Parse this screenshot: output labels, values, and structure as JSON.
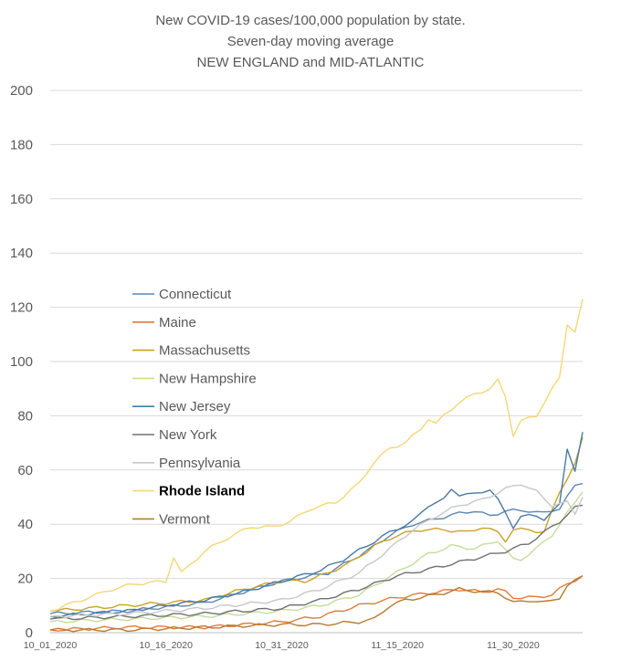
{
  "chart_data": {
    "type": "line",
    "title_lines": [
      "New COVID-19 cases/100,000 population by state.",
      "Seven-day moving average",
      "NEW ENGLAND and MID-ATLANTIC"
    ],
    "xlabel": "",
    "ylabel": "",
    "ylim": [
      0,
      200
    ],
    "yticks": [
      0,
      20,
      40,
      60,
      80,
      100,
      120,
      140,
      160,
      180,
      200
    ],
    "x_start": "10_01_2020",
    "num_points": 70,
    "xtick_labels": [
      {
        "label": "10_01_2020",
        "index": 0
      },
      {
        "label": "10_16_2020",
        "index": 15
      },
      {
        "label": "10_31_2020",
        "index": 30
      },
      {
        "label": "11_15_2020",
        "index": 45
      },
      {
        "label": "11_30_2020",
        "index": 60
      }
    ],
    "grid": true,
    "legend_position": "center-left",
    "highlighted_series": "Rhode Island",
    "series": [
      {
        "name": "Connecticut",
        "color": "#5b87b0",
        "keys": [
          [
            0,
            7
          ],
          [
            10,
            8
          ],
          [
            20,
            11
          ],
          [
            30,
            19
          ],
          [
            36,
            22
          ],
          [
            41,
            30
          ],
          [
            44,
            36
          ],
          [
            47,
            40
          ],
          [
            50,
            42
          ],
          [
            53,
            44
          ],
          [
            55,
            45
          ],
          [
            57,
            43
          ],
          [
            59,
            45
          ],
          [
            62,
            45
          ],
          [
            64,
            44
          ],
          [
            66,
            46
          ],
          [
            68,
            54
          ],
          [
            69,
            55
          ]
        ]
      },
      {
        "name": "Maine",
        "color": "#e07b39",
        "keys": [
          [
            0,
            1
          ],
          [
            10,
            2
          ],
          [
            20,
            2
          ],
          [
            30,
            4
          ],
          [
            35,
            6
          ],
          [
            40,
            10
          ],
          [
            45,
            13
          ],
          [
            50,
            15
          ],
          [
            53,
            16
          ],
          [
            56,
            15
          ],
          [
            58,
            16
          ],
          [
            59,
            15
          ],
          [
            60,
            13
          ],
          [
            63,
            13
          ],
          [
            65,
            14
          ],
          [
            67,
            18
          ],
          [
            69,
            21
          ]
        ]
      },
      {
        "name": "Massachusetts",
        "color": "#c9a227",
        "keys": [
          [
            0,
            8
          ],
          [
            10,
            10
          ],
          [
            20,
            12
          ],
          [
            25,
            16
          ],
          [
            30,
            19
          ],
          [
            33,
            19
          ],
          [
            36,
            22
          ],
          [
            39,
            26
          ],
          [
            42,
            32
          ],
          [
            45,
            36
          ],
          [
            48,
            38
          ],
          [
            51,
            38
          ],
          [
            54,
            37
          ],
          [
            56,
            39
          ],
          [
            58,
            37
          ],
          [
            59,
            34
          ],
          [
            60,
            38
          ],
          [
            62,
            38
          ],
          [
            64,
            37
          ],
          [
            66,
            52
          ],
          [
            68,
            62
          ],
          [
            69,
            72
          ]
        ]
      },
      {
        "name": "New Hampshire",
        "color": "#c5dd9a",
        "keys": [
          [
            0,
            4
          ],
          [
            10,
            5
          ],
          [
            20,
            6
          ],
          [
            30,
            8
          ],
          [
            35,
            10
          ],
          [
            40,
            14
          ],
          [
            43,
            19
          ],
          [
            46,
            24
          ],
          [
            49,
            29
          ],
          [
            52,
            32
          ],
          [
            55,
            31
          ],
          [
            58,
            34
          ],
          [
            60,
            27
          ],
          [
            61,
            27
          ],
          [
            63,
            31
          ],
          [
            65,
            36
          ],
          [
            67,
            44
          ],
          [
            69,
            52
          ]
        ]
      },
      {
        "name": "New Jersey",
        "color": "#4a78a6",
        "keys": [
          [
            0,
            6
          ],
          [
            10,
            8
          ],
          [
            20,
            12
          ],
          [
            25,
            15
          ],
          [
            30,
            19
          ],
          [
            35,
            23
          ],
          [
            38,
            27
          ],
          [
            41,
            32
          ],
          [
            44,
            37
          ],
          [
            47,
            41
          ],
          [
            49,
            47
          ],
          [
            51,
            49
          ],
          [
            52,
            53
          ],
          [
            53,
            51
          ],
          [
            55,
            51
          ],
          [
            57,
            53
          ],
          [
            58,
            49
          ],
          [
            60,
            39
          ],
          [
            61,
            43
          ],
          [
            63,
            43
          ],
          [
            64,
            42
          ],
          [
            66,
            47
          ],
          [
            67,
            68
          ],
          [
            68,
            60
          ],
          [
            69,
            74
          ]
        ]
      },
      {
        "name": "New York",
        "color": "#707070",
        "keys": [
          [
            0,
            5
          ],
          [
            10,
            6
          ],
          [
            20,
            7
          ],
          [
            30,
            9
          ],
          [
            35,
            12
          ],
          [
            40,
            16
          ],
          [
            45,
            21
          ],
          [
            50,
            24
          ],
          [
            53,
            26
          ],
          [
            56,
            28
          ],
          [
            59,
            30
          ],
          [
            62,
            33
          ],
          [
            64,
            37
          ],
          [
            66,
            41
          ],
          [
            68,
            46
          ],
          [
            69,
            47
          ]
        ]
      },
      {
        "name": "Pennsylvania",
        "color": "#c8c8c8",
        "keys": [
          [
            0,
            6
          ],
          [
            10,
            7
          ],
          [
            20,
            9
          ],
          [
            30,
            12
          ],
          [
            35,
            16
          ],
          [
            40,
            22
          ],
          [
            44,
            31
          ],
          [
            47,
            38
          ],
          [
            50,
            43
          ],
          [
            53,
            47
          ],
          [
            56,
            49
          ],
          [
            59,
            53
          ],
          [
            61,
            55
          ],
          [
            63,
            52
          ],
          [
            65,
            47
          ],
          [
            67,
            48
          ],
          [
            68,
            44
          ],
          [
            69,
            50
          ]
        ]
      },
      {
        "name": "Rhode Island",
        "color": "#f5d776",
        "keys": [
          [
            0,
            8
          ],
          [
            4,
            12
          ],
          [
            8,
            16
          ],
          [
            11,
            18
          ],
          [
            15,
            19
          ],
          [
            16,
            28
          ],
          [
            17,
            22
          ],
          [
            20,
            30
          ],
          [
            23,
            35
          ],
          [
            26,
            39
          ],
          [
            29,
            39
          ],
          [
            31,
            41
          ],
          [
            34,
            46
          ],
          [
            37,
            48
          ],
          [
            40,
            55
          ],
          [
            42,
            63
          ],
          [
            44,
            68
          ],
          [
            46,
            70
          ],
          [
            48,
            75
          ],
          [
            49,
            79
          ],
          [
            50,
            77
          ],
          [
            51,
            80
          ],
          [
            53,
            85
          ],
          [
            55,
            88
          ],
          [
            57,
            90
          ],
          [
            58,
            93
          ],
          [
            59,
            87
          ],
          [
            60,
            73
          ],
          [
            61,
            78
          ],
          [
            63,
            80
          ],
          [
            64,
            85
          ],
          [
            66,
            94
          ],
          [
            67,
            114
          ],
          [
            68,
            111
          ],
          [
            69,
            123
          ]
        ]
      },
      {
        "name": "Vermont",
        "color": "#b77a2e",
        "keys": [
          [
            0,
            1
          ],
          [
            10,
            1
          ],
          [
            20,
            2
          ],
          [
            30,
            3
          ],
          [
            35,
            3
          ],
          [
            40,
            4
          ],
          [
            42,
            5
          ],
          [
            44,
            10
          ],
          [
            46,
            12
          ],
          [
            48,
            13
          ],
          [
            50,
            14
          ],
          [
            53,
            16
          ],
          [
            56,
            15
          ],
          [
            58,
            15
          ],
          [
            60,
            11
          ],
          [
            62,
            12
          ],
          [
            64,
            11
          ],
          [
            66,
            13
          ],
          [
            67,
            17
          ],
          [
            69,
            21
          ]
        ]
      }
    ]
  }
}
